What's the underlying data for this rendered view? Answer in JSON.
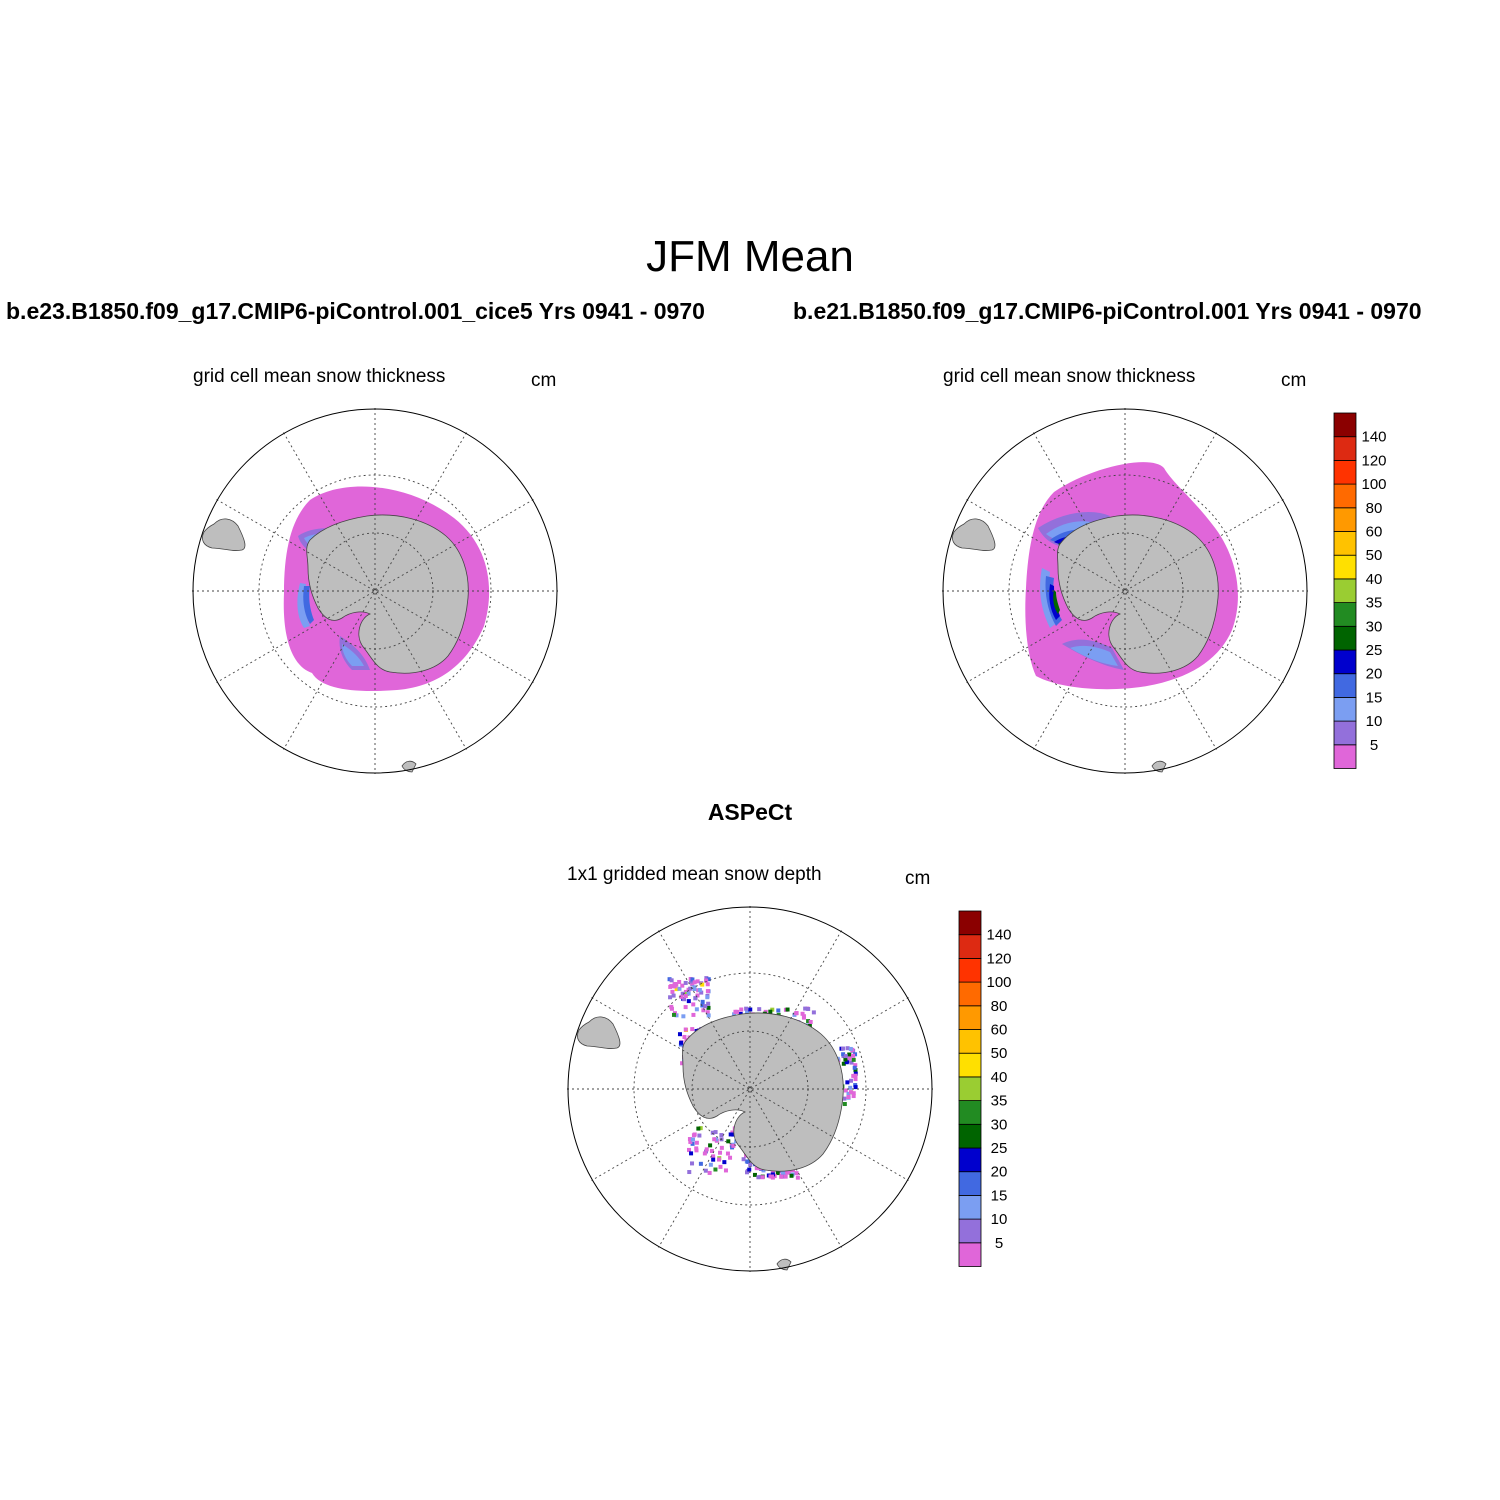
{
  "title": "JFM Mean",
  "panels": {
    "run_a": {
      "header": "b.e23.B1850.f09_g17.CMIP6-piControl.001_cice5  Yrs 0941 - 0970",
      "subtitle": "grid cell mean snow thickness",
      "units": "cm"
    },
    "run_b": {
      "header": "b.e21.B1850.f09_g17.CMIP6-piControl.001  Yrs 0941 - 0970",
      "subtitle": "grid cell mean snow thickness",
      "units": "cm"
    },
    "observations": {
      "header": "ASPeCt",
      "subtitle": "1x1 gridded mean snow depth",
      "units": "cm"
    }
  },
  "colorbar": {
    "levels": [
      "5",
      "10",
      "15",
      "20",
      "25",
      "30",
      "35",
      "40",
      "50",
      "60",
      "80",
      "100",
      "120",
      "140"
    ],
    "colors": [
      "#e066d9",
      "#9370db",
      "#7b9ef2",
      "#4169e1",
      "#0000cd",
      "#006400",
      "#228b22",
      "#9acd32",
      "#ffe000",
      "#ffc200",
      "#ff9900",
      "#ff6a00",
      "#ff3300",
      "#dd2a12",
      "#8b0000"
    ]
  },
  "map": {
    "projection": "south polar stereographic",
    "land_color": "#bebebe",
    "grid": "dotted"
  }
}
